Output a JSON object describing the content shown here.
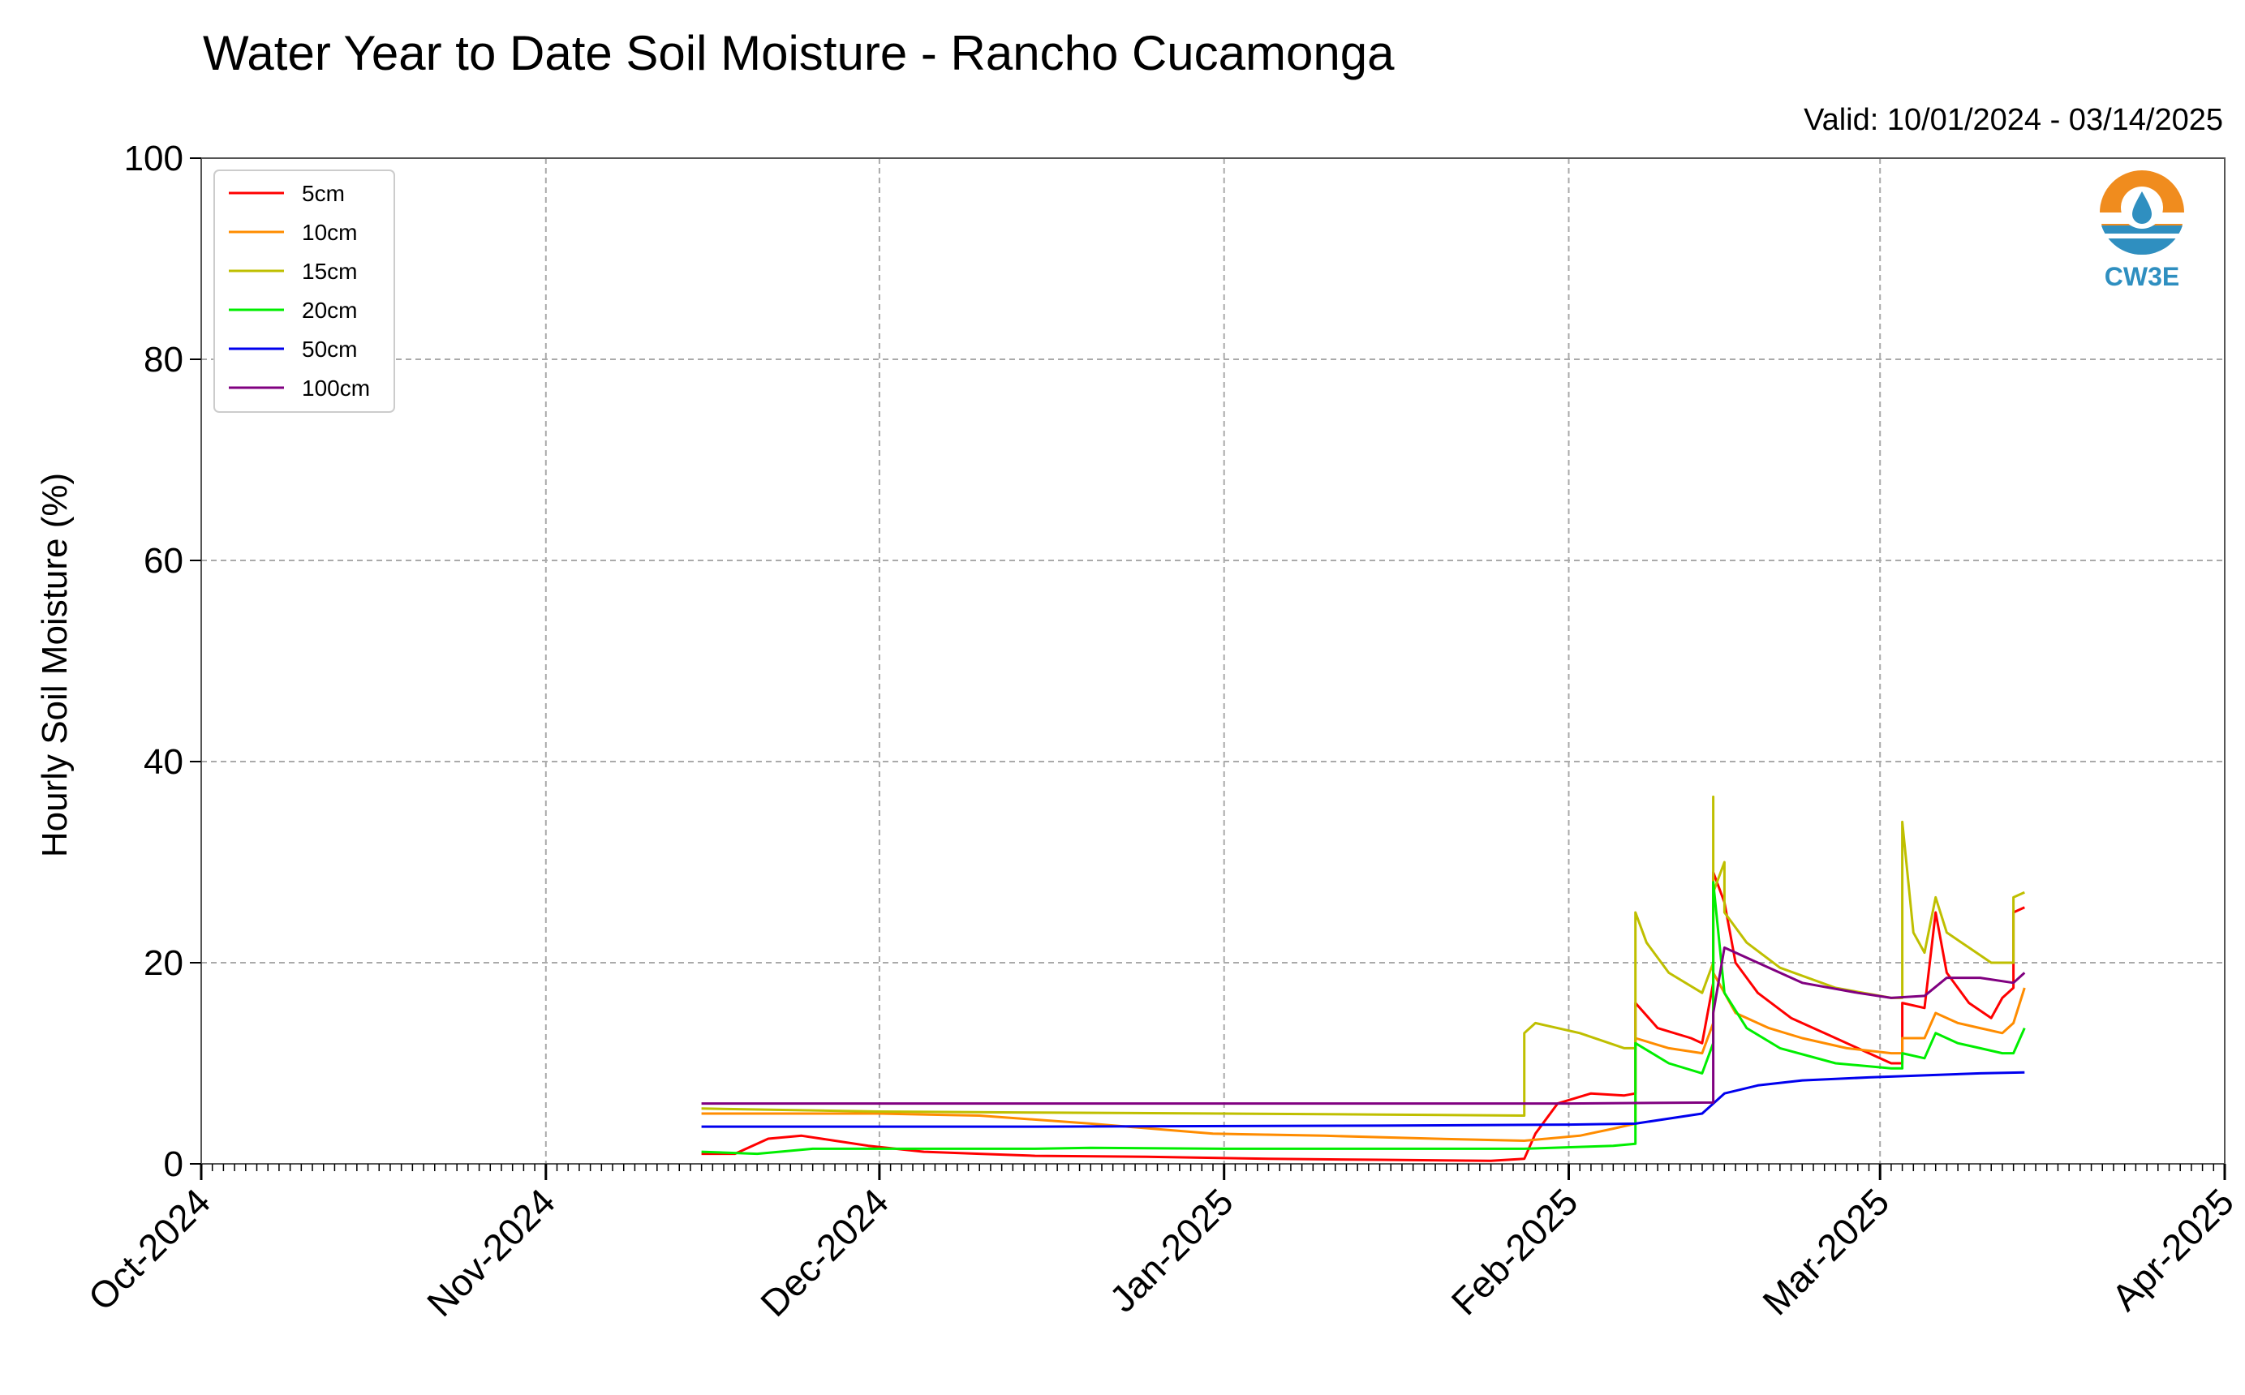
{
  "chart_data": {
    "type": "line",
    "title": "Water Year to Date Soil Moisture - Rancho Cucamonga",
    "subtitle": "Valid: 10/01/2024 - 03/14/2025",
    "xlabel": "",
    "ylabel": "Hourly Soil Moisture (%)",
    "ylim": [
      0,
      100
    ],
    "yticks": [
      0,
      20,
      40,
      60,
      80,
      100
    ],
    "xlim": [
      "2024-10-01",
      "2025-04-01"
    ],
    "xticks": [
      "Oct-2024",
      "Nov-2024",
      "Dec-2024",
      "Jan-2025",
      "Feb-2025",
      "Mar-2025",
      "Apr-2025"
    ],
    "grid": true,
    "legend_position": "top-left",
    "logo_text": "CW3E",
    "series": [
      {
        "name": "5cm",
        "color": "#ff0000",
        "points": [
          [
            "2024-11-15",
            1.0
          ],
          [
            "2024-11-18",
            1.0
          ],
          [
            "2024-11-21",
            2.5
          ],
          [
            "2024-11-24",
            2.8
          ],
          [
            "2024-11-27",
            2.3
          ],
          [
            "2024-11-30",
            1.8
          ],
          [
            "2024-12-05",
            1.2
          ],
          [
            "2024-12-10",
            1.0
          ],
          [
            "2024-12-15",
            0.8
          ],
          [
            "2024-12-25",
            0.7
          ],
          [
            "2025-01-05",
            0.5
          ],
          [
            "2025-01-15",
            0.4
          ],
          [
            "2025-01-25",
            0.3
          ],
          [
            "2025-01-28",
            0.5
          ],
          [
            "2025-01-29",
            3.0
          ],
          [
            "2025-01-31",
            6.0
          ],
          [
            "2025-02-03",
            7.0
          ],
          [
            "2025-02-06",
            6.8
          ],
          [
            "2025-02-07",
            7.0
          ],
          [
            "2025-02-07",
            16.0
          ],
          [
            "2025-02-09",
            13.5
          ],
          [
            "2025-02-12",
            12.5
          ],
          [
            "2025-02-13",
            12.0
          ],
          [
            "2025-02-14",
            18.0
          ],
          [
            "2025-02-14",
            29.0
          ],
          [
            "2025-02-15",
            26.0
          ],
          [
            "2025-02-16",
            20.0
          ],
          [
            "2025-02-18",
            17.0
          ],
          [
            "2025-02-21",
            14.5
          ],
          [
            "2025-02-24",
            13.0
          ],
          [
            "2025-02-27",
            11.5
          ],
          [
            "2025-03-02",
            10.0
          ],
          [
            "2025-03-03",
            10.0
          ],
          [
            "2025-03-03",
            16.0
          ],
          [
            "2025-03-05",
            15.5
          ],
          [
            "2025-03-06",
            25.0
          ],
          [
            "2025-03-07",
            19.0
          ],
          [
            "2025-03-09",
            16.0
          ],
          [
            "2025-03-11",
            14.5
          ],
          [
            "2025-03-12",
            16.5
          ],
          [
            "2025-03-13",
            17.5
          ],
          [
            "2025-03-13",
            25.0
          ],
          [
            "2025-03-14",
            25.5
          ]
        ]
      },
      {
        "name": "10cm",
        "color": "#ff8c00",
        "points": [
          [
            "2024-11-15",
            5.0
          ],
          [
            "2024-12-01",
            5.0
          ],
          [
            "2024-12-10",
            4.8
          ],
          [
            "2024-12-20",
            4.0
          ],
          [
            "2024-12-31",
            3.0
          ],
          [
            "2025-01-10",
            2.8
          ],
          [
            "2025-01-20",
            2.5
          ],
          [
            "2025-01-28",
            2.3
          ],
          [
            "2025-02-02",
            2.8
          ],
          [
            "2025-02-05",
            3.5
          ],
          [
            "2025-02-07",
            4.0
          ],
          [
            "2025-02-07",
            12.5
          ],
          [
            "2025-02-10",
            11.5
          ],
          [
            "2025-02-13",
            11.0
          ],
          [
            "2025-02-14",
            14.0
          ],
          [
            "2025-02-14",
            19.0
          ],
          [
            "2025-02-16",
            15.0
          ],
          [
            "2025-02-19",
            13.5
          ],
          [
            "2025-02-22",
            12.5
          ],
          [
            "2025-02-26",
            11.5
          ],
          [
            "2025-03-02",
            11.0
          ],
          [
            "2025-03-03",
            11.0
          ],
          [
            "2025-03-03",
            12.5
          ],
          [
            "2025-03-05",
            12.5
          ],
          [
            "2025-03-06",
            15.0
          ],
          [
            "2025-03-08",
            14.0
          ],
          [
            "2025-03-10",
            13.5
          ],
          [
            "2025-03-12",
            13.0
          ],
          [
            "2025-03-13",
            14.0
          ],
          [
            "2025-03-14",
            17.5
          ]
        ]
      },
      {
        "name": "15cm",
        "color": "#bfbf00",
        "points": [
          [
            "2024-11-15",
            5.5
          ],
          [
            "2024-12-01",
            5.2
          ],
          [
            "2024-12-15",
            5.1
          ],
          [
            "2025-01-01",
            5.0
          ],
          [
            "2025-01-15",
            4.9
          ],
          [
            "2025-01-28",
            4.8
          ],
          [
            "2025-01-28",
            13.0
          ],
          [
            "2025-01-29",
            14.0
          ],
          [
            "2025-02-02",
            13.0
          ],
          [
            "2025-02-06",
            11.5
          ],
          [
            "2025-02-07",
            11.5
          ],
          [
            "2025-02-07",
            25.0
          ],
          [
            "2025-02-08",
            22.0
          ],
          [
            "2025-02-10",
            19.0
          ],
          [
            "2025-02-13",
            17.0
          ],
          [
            "2025-02-14",
            20.0
          ],
          [
            "2025-02-14",
            36.5
          ],
          [
            "2025-02-14",
            27.0
          ],
          [
            "2025-02-15",
            30.0
          ],
          [
            "2025-02-15",
            25.0
          ],
          [
            "2025-02-17",
            22.0
          ],
          [
            "2025-02-20",
            19.5
          ],
          [
            "2025-02-25",
            17.5
          ],
          [
            "2025-03-02",
            16.5
          ],
          [
            "2025-03-03",
            16.5
          ],
          [
            "2025-03-03",
            34.0
          ],
          [
            "2025-03-04",
            23.0
          ],
          [
            "2025-03-05",
            21.0
          ],
          [
            "2025-03-06",
            26.5
          ],
          [
            "2025-03-07",
            23.0
          ],
          [
            "2025-03-09",
            21.5
          ],
          [
            "2025-03-11",
            20.0
          ],
          [
            "2025-03-13",
            20.0
          ],
          [
            "2025-03-13",
            26.5
          ],
          [
            "2025-03-14",
            27.0
          ]
        ]
      },
      {
        "name": "20cm",
        "color": "#00ee00",
        "points": [
          [
            "2024-11-15",
            1.2
          ],
          [
            "2024-11-20",
            1.0
          ],
          [
            "2024-11-25",
            1.5
          ],
          [
            "2024-12-05",
            1.5
          ],
          [
            "2024-12-15",
            1.5
          ],
          [
            "2024-12-20",
            1.6
          ],
          [
            "2025-01-01",
            1.5
          ],
          [
            "2025-01-28",
            1.5
          ],
          [
            "2025-02-05",
            1.8
          ],
          [
            "2025-02-07",
            2.0
          ],
          [
            "2025-02-07",
            12.0
          ],
          [
            "2025-02-10",
            10.0
          ],
          [
            "2025-02-13",
            9.0
          ],
          [
            "2025-02-14",
            12.0
          ],
          [
            "2025-02-14",
            28.0
          ],
          [
            "2025-02-15",
            17.0
          ],
          [
            "2025-02-17",
            13.5
          ],
          [
            "2025-02-20",
            11.5
          ],
          [
            "2025-02-25",
            10.0
          ],
          [
            "2025-03-02",
            9.5
          ],
          [
            "2025-03-03",
            9.5
          ],
          [
            "2025-03-03",
            11.0
          ],
          [
            "2025-03-05",
            10.5
          ],
          [
            "2025-03-06",
            13.0
          ],
          [
            "2025-03-08",
            12.0
          ],
          [
            "2025-03-10",
            11.5
          ],
          [
            "2025-03-12",
            11.0
          ],
          [
            "2025-03-13",
            11.0
          ],
          [
            "2025-03-14",
            13.5
          ]
        ]
      },
      {
        "name": "50cm",
        "color": "#0000ee",
        "points": [
          [
            "2024-11-15",
            3.7
          ],
          [
            "2024-12-15",
            3.7
          ],
          [
            "2025-01-15",
            3.8
          ],
          [
            "2025-02-01",
            3.9
          ],
          [
            "2025-02-07",
            4.0
          ],
          [
            "2025-02-13",
            5.0
          ],
          [
            "2025-02-15",
            7.0
          ],
          [
            "2025-02-18",
            7.8
          ],
          [
            "2025-02-22",
            8.3
          ],
          [
            "2025-02-28",
            8.6
          ],
          [
            "2025-03-05",
            8.8
          ],
          [
            "2025-03-10",
            9.0
          ],
          [
            "2025-03-14",
            9.1
          ]
        ]
      },
      {
        "name": "100cm",
        "color": "#800080",
        "points": [
          [
            "2024-11-15",
            6.0
          ],
          [
            "2025-01-01",
            6.0
          ],
          [
            "2025-02-01",
            6.0
          ],
          [
            "2025-02-14",
            6.1
          ],
          [
            "2025-02-14",
            15.0
          ],
          [
            "2025-02-15",
            21.5
          ],
          [
            "2025-02-18",
            20.0
          ],
          [
            "2025-02-22",
            18.0
          ],
          [
            "2025-02-27",
            17.0
          ],
          [
            "2025-03-02",
            16.5
          ],
          [
            "2025-03-05",
            16.7
          ],
          [
            "2025-03-07",
            18.5
          ],
          [
            "2025-03-10",
            18.5
          ],
          [
            "2025-03-13",
            18.0
          ],
          [
            "2025-03-14",
            19.0
          ]
        ]
      }
    ]
  }
}
